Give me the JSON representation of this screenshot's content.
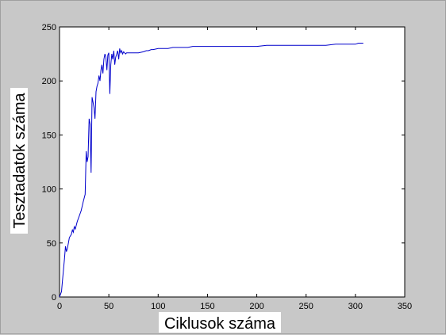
{
  "chart_data": {
    "type": "line",
    "title": "",
    "xlabel": "Ciklusok száma",
    "ylabel": "Tesztadatok száma",
    "xlim": [
      0,
      350
    ],
    "ylim": [
      0,
      250
    ],
    "xticks": [
      0,
      50,
      100,
      150,
      200,
      250,
      300,
      350
    ],
    "yticks": [
      0,
      50,
      100,
      150,
      200,
      250
    ],
    "grid": false,
    "line_color": "#0000cc",
    "series": [
      {
        "x": [
          0,
          2,
          3,
          5,
          6,
          7,
          8,
          9,
          10,
          12,
          13,
          14,
          15,
          16,
          18,
          20,
          22,
          24,
          26,
          27,
          28,
          29,
          30,
          31,
          32,
          33,
          34,
          35,
          36,
          37,
          38,
          39,
          40,
          41,
          42,
          43,
          44,
          45,
          46,
          47,
          48,
          49,
          50,
          51,
          52,
          53,
          54,
          55,
          56,
          57,
          58,
          59,
          60,
          61,
          62,
          63,
          64,
          65,
          66,
          67,
          68,
          70,
          75,
          80,
          85,
          88,
          90,
          93,
          95,
          100,
          105,
          110,
          115,
          120,
          125,
          130,
          135,
          140,
          145,
          150,
          160,
          170,
          180,
          190,
          200,
          210,
          220,
          230,
          240,
          250,
          260,
          270,
          280,
          290,
          300,
          303,
          306,
          308
        ],
        "y": [
          0,
          5,
          15,
          35,
          47,
          42,
          45,
          50,
          55,
          58,
          62,
          60,
          65,
          63,
          70,
          75,
          80,
          88,
          95,
          135,
          125,
          130,
          165,
          160,
          115,
          185,
          180,
          175,
          165,
          190,
          195,
          198,
          205,
          200,
          210,
          215,
          207,
          220,
          225,
          222,
          210,
          224,
          226,
          188,
          215,
          225,
          220,
          228,
          215,
          222,
          225,
          228,
          220,
          230,
          226,
          228,
          225,
          227,
          226,
          225,
          226,
          226,
          226,
          226,
          227,
          228,
          228,
          229,
          229,
          230,
          230,
          230,
          231,
          231,
          231,
          231,
          232,
          232,
          232,
          232,
          232,
          232,
          232,
          232,
          232,
          233,
          233,
          233,
          233,
          233,
          233,
          233,
          234,
          234,
          234,
          235,
          235,
          235
        ]
      }
    ]
  }
}
